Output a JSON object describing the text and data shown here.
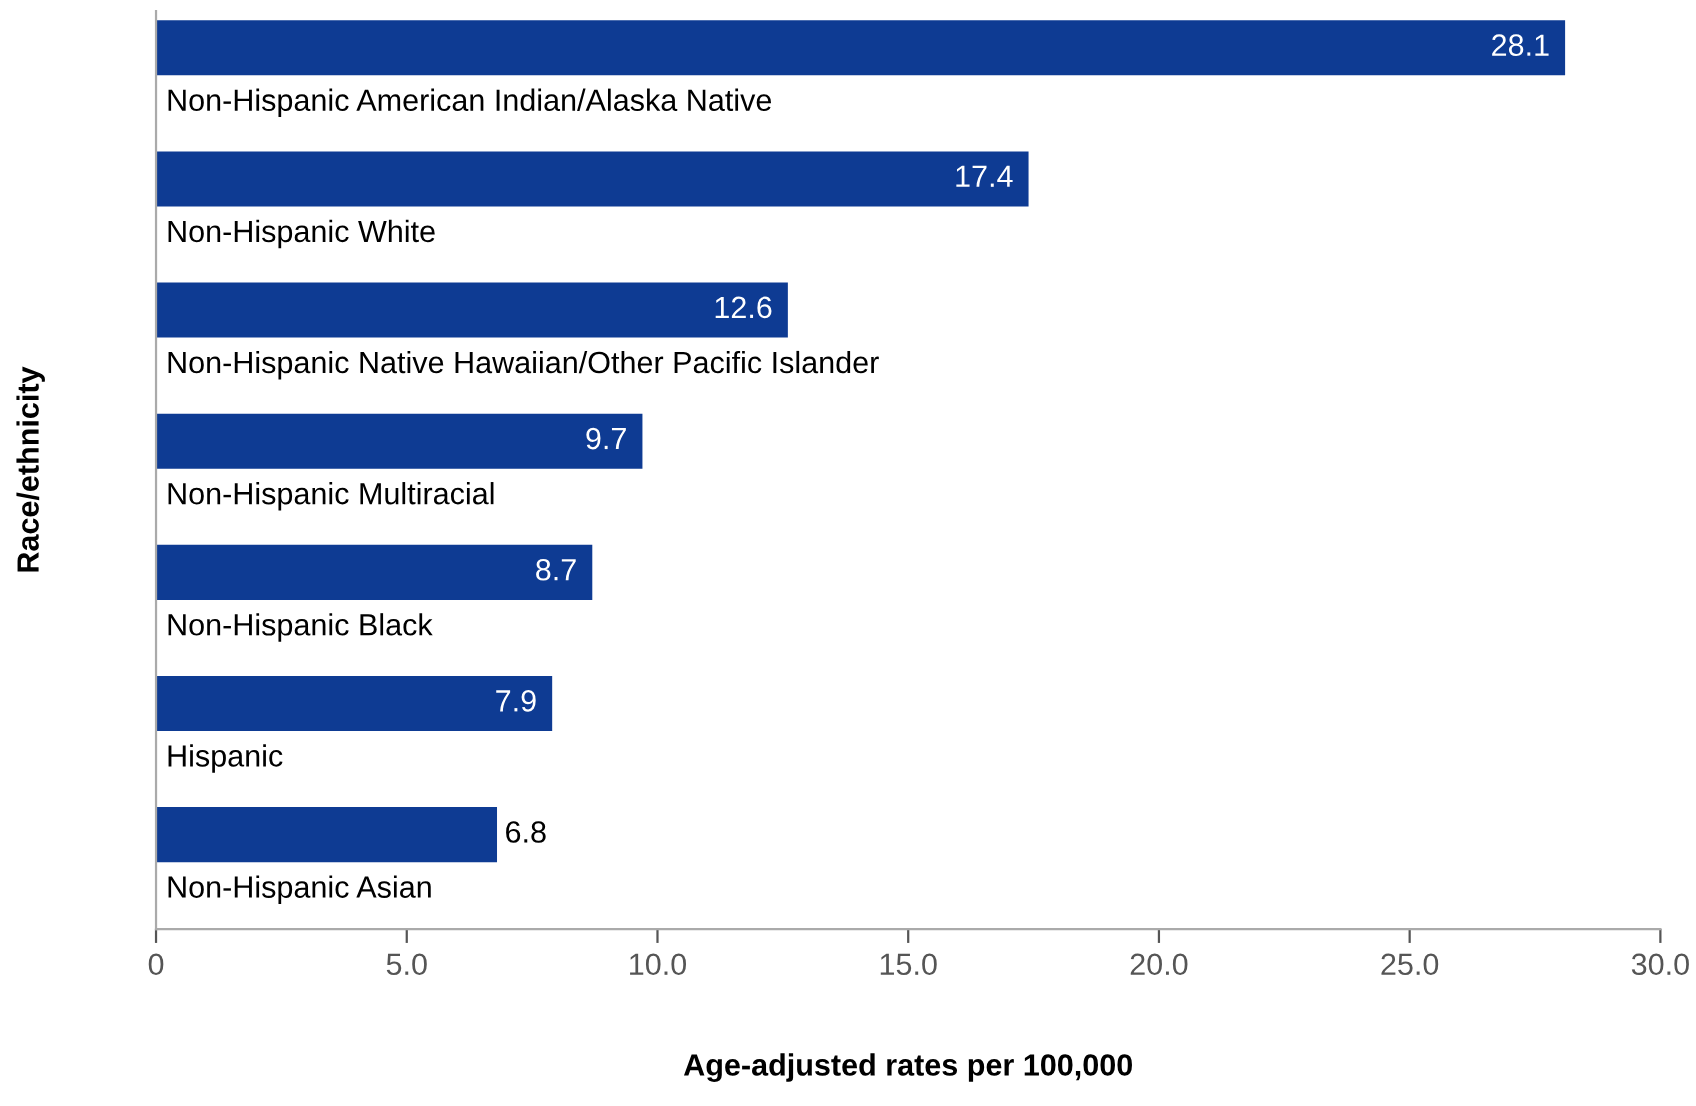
{
  "chart_data": {
    "type": "bar",
    "orientation": "horizontal",
    "xlabel": "Age-adjusted rates per 100,000",
    "ylabel": "Race/ethnicity",
    "categories": [
      "Non-Hispanic American Indian/Alaska Native",
      "Non-Hispanic White",
      "Non-Hispanic Native Hawaiian/Other Pacific Islander",
      "Non-Hispanic Multiracial",
      "Non-Hispanic Black",
      "Hispanic",
      "Non-Hispanic Asian"
    ],
    "values": [
      28.1,
      17.4,
      12.6,
      9.7,
      8.7,
      7.9,
      6.8
    ],
    "color": "#0e3b93",
    "value_labels": [
      "28.1",
      "17.4",
      "12.6",
      "9.7",
      "8.7",
      "7.9",
      "6.8"
    ],
    "xlim": [
      0,
      30
    ],
    "xticks": [
      {
        "value": 0,
        "label": "0"
      },
      {
        "value": 5,
        "label": "5.0"
      },
      {
        "value": 10,
        "label": "10.0"
      },
      {
        "value": 15,
        "label": "15.0"
      },
      {
        "value": 20,
        "label": "20.0"
      },
      {
        "value": 25,
        "label": "25.0"
      },
      {
        "value": 30,
        "label": "30.0"
      }
    ],
    "grid": false,
    "legend": false
  }
}
